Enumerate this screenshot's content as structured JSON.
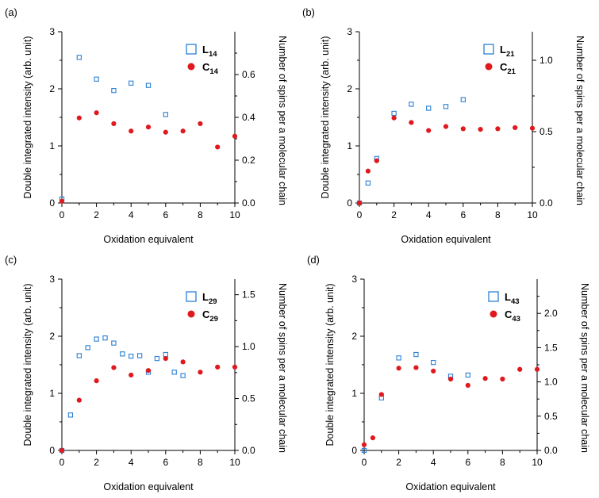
{
  "chart_data": [
    {
      "type": "scatter",
      "panel_label": "(a)",
      "xlabel": "Oxidation equivalent",
      "ylabel": "Double integrated intensity (arb. unit)",
      "y2label": "Number of spins per a molecular chain",
      "xlim": [
        0,
        10
      ],
      "ylim": [
        0,
        3
      ],
      "y2lim": [
        0,
        0.8
      ],
      "xticks": [
        "0",
        "2",
        "4",
        "6",
        "8",
        "10"
      ],
      "yticks": [
        "0",
        "1",
        "2",
        "3"
      ],
      "y2ticks": [
        "0.0",
        "0.2",
        "0.4",
        "0.6"
      ],
      "legend_position": "top-right",
      "series": [
        {
          "name": "L",
          "subscript": "14",
          "marker": "open-square",
          "color": "#2a7fd4",
          "axis": "left",
          "x": [
            0,
            1,
            2,
            3,
            4,
            5,
            6
          ],
          "y": [
            0.07,
            2.55,
            2.17,
            1.97,
            2.1,
            2.06,
            1.55
          ]
        },
        {
          "name": "C",
          "subscript": "14",
          "marker": "filled-circle",
          "color": "#e0191e",
          "axis": "left",
          "x": [
            0,
            1,
            2,
            3,
            4,
            5,
            6,
            7,
            8,
            9,
            10
          ],
          "y": [
            0.03,
            1.49,
            1.58,
            1.39,
            1.26,
            1.33,
            1.24,
            1.26,
            1.39,
            0.98,
            1.17
          ]
        }
      ]
    },
    {
      "type": "scatter",
      "panel_label": "(b)",
      "xlabel": "Oxidation equivalent",
      "ylabel": "Double integrated intensity (arb. unit)",
      "y2label": "Number of spins per a molecular chain",
      "xlim": [
        0,
        10
      ],
      "ylim": [
        0,
        3
      ],
      "y2lim": [
        0,
        1.2
      ],
      "xticks": [
        "0",
        "2",
        "4",
        "6",
        "8",
        "10"
      ],
      "yticks": [
        "0",
        "1",
        "2",
        "3"
      ],
      "y2ticks": [
        "0.0",
        "0.5",
        "1.0"
      ],
      "legend_position": "top-right",
      "series": [
        {
          "name": "L",
          "subscript": "21",
          "marker": "open-square",
          "color": "#2a7fd4",
          "axis": "left",
          "x": [
            0,
            0.5,
            1,
            2,
            3,
            4,
            5,
            6
          ],
          "y": [
            0.0,
            0.35,
            0.78,
            1.57,
            1.73,
            1.66,
            1.69,
            1.81
          ]
        },
        {
          "name": "C",
          "subscript": "21",
          "marker": "filled-circle",
          "color": "#e0191e",
          "axis": "left",
          "x": [
            0,
            0.5,
            1,
            2,
            3,
            4,
            5,
            6,
            7,
            8,
            9,
            10
          ],
          "y": [
            0.0,
            0.56,
            0.74,
            1.49,
            1.41,
            1.27,
            1.34,
            1.3,
            1.29,
            1.3,
            1.32,
            1.31
          ]
        }
      ]
    },
    {
      "type": "scatter",
      "panel_label": "(c)",
      "xlabel": "Oxidation equivalent",
      "ylabel": "Double integrated intensity (arb. unit)",
      "y2label": "Number of spins per a molecular chain",
      "xlim": [
        0,
        10
      ],
      "ylim": [
        0,
        3
      ],
      "y2lim": [
        0,
        1.65
      ],
      "xticks": [
        "0",
        "2",
        "4",
        "6",
        "8",
        "10"
      ],
      "yticks": [
        "0",
        "1",
        "2",
        "3"
      ],
      "y2ticks": [
        "0.0",
        "0.5",
        "1.0",
        "1.5"
      ],
      "legend_position": "top-right",
      "series": [
        {
          "name": "L",
          "subscript": "29",
          "marker": "open-square",
          "color": "#2a7fd4",
          "axis": "left",
          "x": [
            0,
            0.5,
            1,
            1.5,
            2,
            2.5,
            3,
            3.5,
            4,
            4.5,
            5,
            5.5,
            6,
            6.5,
            7
          ],
          "y": [
            0.0,
            0.62,
            1.66,
            1.8,
            1.95,
            1.97,
            1.88,
            1.69,
            1.65,
            1.66,
            1.37,
            1.61,
            1.68,
            1.37,
            1.31
          ]
        },
        {
          "name": "C",
          "subscript": "29",
          "marker": "filled-circle",
          "color": "#e0191e",
          "axis": "left",
          "x": [
            0,
            1,
            2,
            3,
            4,
            5,
            6,
            7,
            8,
            9,
            10
          ],
          "y": [
            0.0,
            0.88,
            1.22,
            1.45,
            1.32,
            1.4,
            1.61,
            1.55,
            1.37,
            1.46,
            1.46
          ]
        }
      ]
    },
    {
      "type": "scatter",
      "panel_label": "(d)",
      "xlabel": "Oxidation equivalent",
      "ylabel": "Double integrated intensity (arb. unit)",
      "y2label": "Number of spins per a molecular chain",
      "xlim": [
        0,
        10
      ],
      "ylim": [
        0,
        3
      ],
      "y2lim": [
        0,
        2.5
      ],
      "xticks": [
        "0",
        "2",
        "4",
        "6",
        "8",
        "10"
      ],
      "yticks": [
        "0",
        "1",
        "2",
        "3"
      ],
      "y2ticks": [
        "0.0",
        "0.5",
        "1.0",
        "1.5",
        "2.0"
      ],
      "legend_position": "top-right",
      "series": [
        {
          "name": "L",
          "subscript": "43",
          "marker": "open-square",
          "color": "#2a7fd4",
          "axis": "left",
          "x": [
            0,
            1,
            2,
            3,
            4,
            5,
            6
          ],
          "y": [
            0.0,
            0.92,
            1.62,
            1.68,
            1.54,
            1.3,
            1.32
          ]
        },
        {
          "name": "C",
          "subscript": "43",
          "marker": "filled-circle",
          "color": "#e0191e",
          "axis": "left",
          "x": [
            0,
            0.5,
            1,
            2,
            3,
            4,
            5,
            6,
            7,
            8,
            9,
            10
          ],
          "y": [
            0.1,
            0.22,
            0.98,
            1.44,
            1.45,
            1.39,
            1.25,
            1.14,
            1.26,
            1.25,
            1.42,
            1.42
          ]
        }
      ]
    }
  ]
}
